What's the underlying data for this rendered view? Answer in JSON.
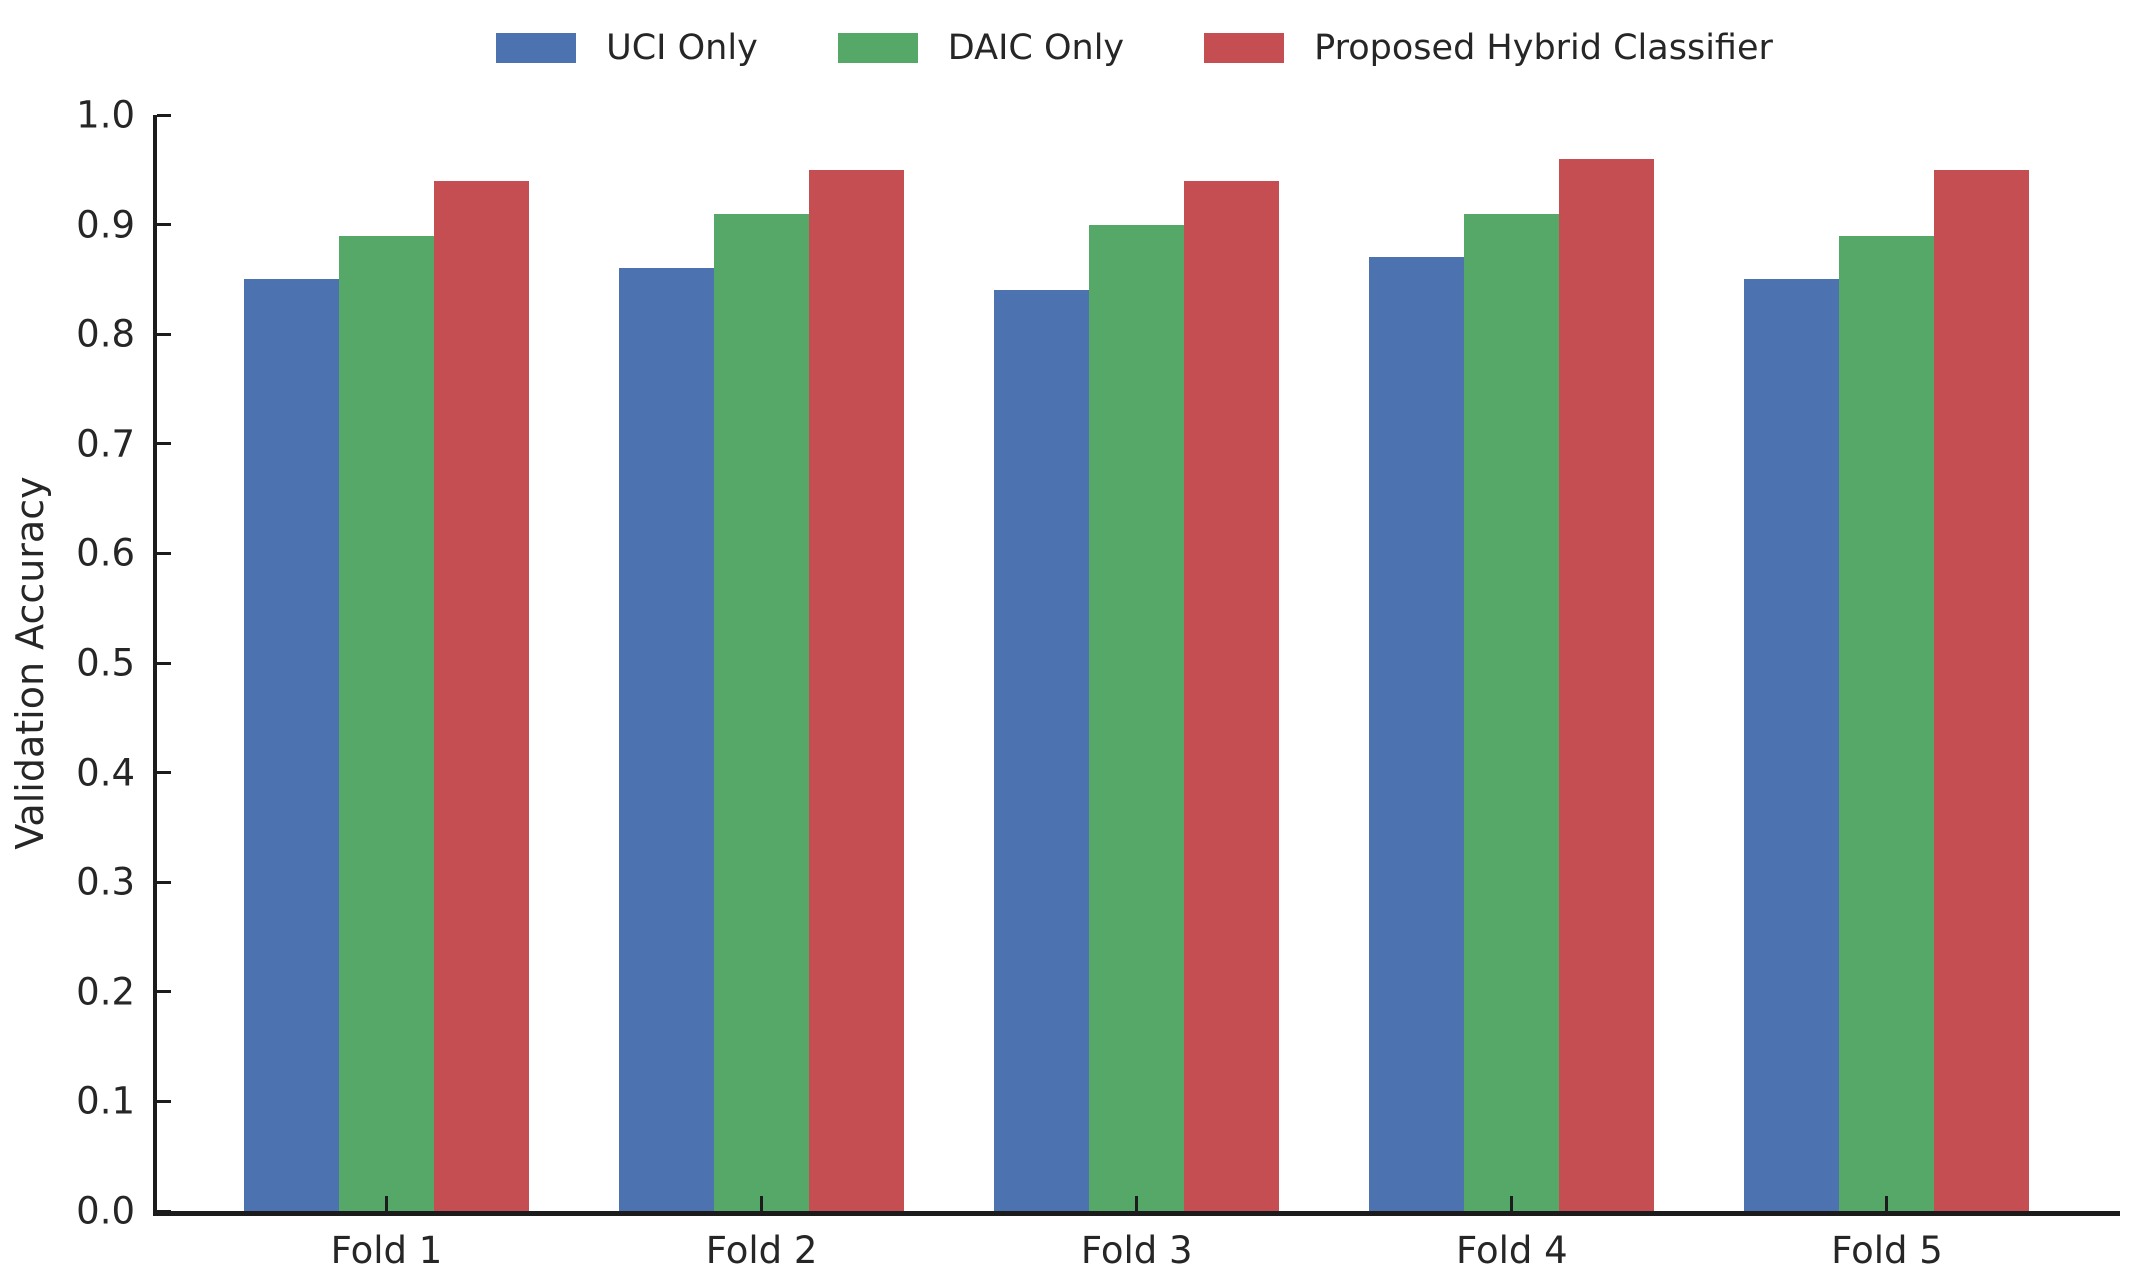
{
  "chart_data": {
    "type": "bar",
    "title": "",
    "xlabel": "",
    "ylabel": "Validation Accuracy",
    "categories": [
      "Fold 1",
      "Fold 2",
      "Fold 3",
      "Fold 4",
      "Fold 5"
    ],
    "series": [
      {
        "name": "UCI Only",
        "color": "#4C72B0",
        "values": [
          0.85,
          0.86,
          0.84,
          0.87,
          0.85
        ]
      },
      {
        "name": "DAIC Only",
        "color": "#55A868",
        "values": [
          0.89,
          0.91,
          0.9,
          0.91,
          0.89
        ]
      },
      {
        "name": "Proposed Hybrid Classifier",
        "color": "#C44E52",
        "values": [
          0.94,
          0.95,
          0.94,
          0.96,
          0.95
        ]
      }
    ],
    "ylim": [
      0.0,
      1.0
    ],
    "ytick_labels": [
      "0.0",
      "0.1",
      "0.2",
      "0.3",
      "0.4",
      "0.5",
      "0.6",
      "0.7",
      "0.8",
      "0.9",
      "1.0"
    ],
    "legend_position": "top",
    "grid": false,
    "colors": {
      "background": "#ffffff",
      "axis": "#1c1c1c",
      "text": "#262626"
    }
  }
}
